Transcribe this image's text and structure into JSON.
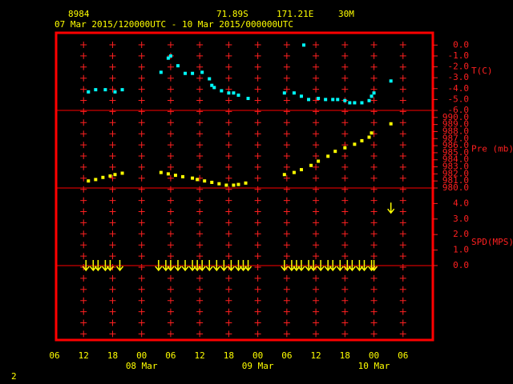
{
  "header": {
    "station": "8984",
    "lat": "71.89S",
    "lon": "171.21E",
    "elev": "30M",
    "period": "07 Mar 2015/120000UTC - 10 Mar 2015/000000UTC"
  },
  "x_axis": {
    "xlim": [
      0,
      78
    ],
    "xticks": [
      {
        "value": 0,
        "label": "06"
      },
      {
        "value": 6,
        "label": "12"
      },
      {
        "value": 12,
        "label": "18"
      },
      {
        "value": 18,
        "label": "00"
      },
      {
        "value": 24,
        "label": "06"
      },
      {
        "value": 30,
        "label": "12"
      },
      {
        "value": 36,
        "label": "18"
      },
      {
        "value": 42,
        "label": "00"
      },
      {
        "value": 48,
        "label": "06"
      },
      {
        "value": 54,
        "label": "12"
      },
      {
        "value": 60,
        "label": "18"
      },
      {
        "value": 66,
        "label": "00"
      },
      {
        "value": 72,
        "label": "06"
      }
    ],
    "dates": [
      {
        "value": 18,
        "label": "08 Mar"
      },
      {
        "value": 42,
        "label": "09 Mar"
      },
      {
        "value": 66,
        "label": "10 Mar"
      }
    ]
  },
  "footer": "2",
  "chart_data": [
    {
      "type": "scatter",
      "ylabel": "T(C)",
      "color": "#00ffff",
      "ylim": [
        -6,
        1.2
      ],
      "yticks": [
        {
          "value": 0,
          "label": "0.0"
        },
        {
          "value": -1,
          "label": "-1.0"
        },
        {
          "value": -2,
          "label": "-2.0"
        },
        {
          "value": -3,
          "label": "-3.0"
        },
        {
          "value": -4,
          "label": "-4.0"
        },
        {
          "value": -5,
          "label": "-5.0"
        },
        {
          "value": -6,
          "label": "-6.0"
        }
      ],
      "x": [
        7,
        8.5,
        10.5,
        12.5,
        14,
        22,
        23.5,
        24,
        25.5,
        27,
        28.5,
        30.5,
        32,
        32.5,
        33,
        34.5,
        36,
        37,
        38,
        40,
        47.5,
        49.5,
        51,
        51.5,
        52.5,
        54.5,
        56,
        57.5,
        58.5,
        60,
        61,
        62,
        63.5,
        65,
        65.5,
        66,
        69.5
      ],
      "values": [
        -4.3,
        -4.1,
        -4.1,
        -4.3,
        -4.1,
        -2.5,
        -1.2,
        -1.0,
        -1.9,
        -2.6,
        -2.6,
        -2.5,
        -3.1,
        -3.7,
        -3.9,
        -4.2,
        -4.4,
        -4.4,
        -4.6,
        -4.9,
        -4.4,
        -4.4,
        -4.7,
        0.0,
        -5.0,
        -4.9,
        -5.0,
        -5.0,
        -5.0,
        -5.1,
        -5.3,
        -5.3,
        -5.3,
        -5.1,
        -4.7,
        -4.4,
        -3.3
      ]
    },
    {
      "type": "scatter",
      "ylabel": "Pre (mb)",
      "color": "#ffff00",
      "ylim": [
        980,
        991
      ],
      "yticks": [
        {
          "value": 990,
          "label": "990.0"
        },
        {
          "value": 989,
          "label": "989.0"
        },
        {
          "value": 988,
          "label": "988.0"
        },
        {
          "value": 987,
          "label": "987.0"
        },
        {
          "value": 986,
          "label": "986.0"
        },
        {
          "value": 985,
          "label": "985.0"
        },
        {
          "value": 984,
          "label": "984.0"
        },
        {
          "value": 983,
          "label": "983.0"
        },
        {
          "value": 982,
          "label": "982.0"
        },
        {
          "value": 981,
          "label": "981.0"
        },
        {
          "value": 980,
          "label": "980.0"
        }
      ],
      "x": [
        7,
        8.5,
        10,
        11.5,
        12.5,
        14,
        22,
        23.5,
        25,
        26.5,
        28.5,
        29.5,
        31,
        32.5,
        34,
        35.5,
        37,
        38,
        39.5,
        47.5,
        49.5,
        51,
        53,
        54.5,
        56.5,
        58,
        60,
        62,
        63.5,
        65,
        65.5,
        69.5
      ],
      "values": [
        981.0,
        981.2,
        981.5,
        981.7,
        981.9,
        982.1,
        982.2,
        982.0,
        981.8,
        981.6,
        981.4,
        981.2,
        981.0,
        980.8,
        980.6,
        980.4,
        980.4,
        980.5,
        980.7,
        981.9,
        982.2,
        982.6,
        983.2,
        983.8,
        984.5,
        985.2,
        985.7,
        986.2,
        986.7,
        987.2,
        987.8,
        989.1
      ]
    },
    {
      "type": "arrows",
      "ylabel": "SPD(MPS)",
      "color": "#ffff00",
      "ylim": [
        -4.8,
        5
      ],
      "yticks": [
        {
          "value": 0,
          "label": "0.0"
        },
        {
          "value": 1,
          "label": "1.0"
        },
        {
          "value": 2,
          "label": "2.0"
        },
        {
          "value": 3,
          "label": "3.0"
        },
        {
          "value": 4,
          "label": "4.0"
        }
      ],
      "x": [
        6.5,
        8,
        9,
        10.5,
        11.5,
        13.5,
        21.5,
        23,
        24,
        25.5,
        27,
        28.5,
        29.5,
        30.5,
        32,
        33.5,
        35,
        36.5,
        38,
        39,
        40,
        47.5,
        49,
        50,
        51,
        52.5,
        53.5,
        55,
        56.5,
        57.5,
        59,
        60.5,
        61.5,
        63,
        64,
        65.5,
        66,
        69.5
      ],
      "values": [
        0,
        0,
        0,
        0,
        0,
        0,
        0,
        0,
        0,
        0,
        0,
        0,
        0,
        0,
        0,
        0,
        0,
        0,
        0,
        0,
        0,
        0,
        0,
        0,
        0,
        0,
        0,
        0,
        0,
        0,
        0,
        0,
        0,
        0,
        0,
        0,
        0,
        3.7
      ]
    }
  ]
}
